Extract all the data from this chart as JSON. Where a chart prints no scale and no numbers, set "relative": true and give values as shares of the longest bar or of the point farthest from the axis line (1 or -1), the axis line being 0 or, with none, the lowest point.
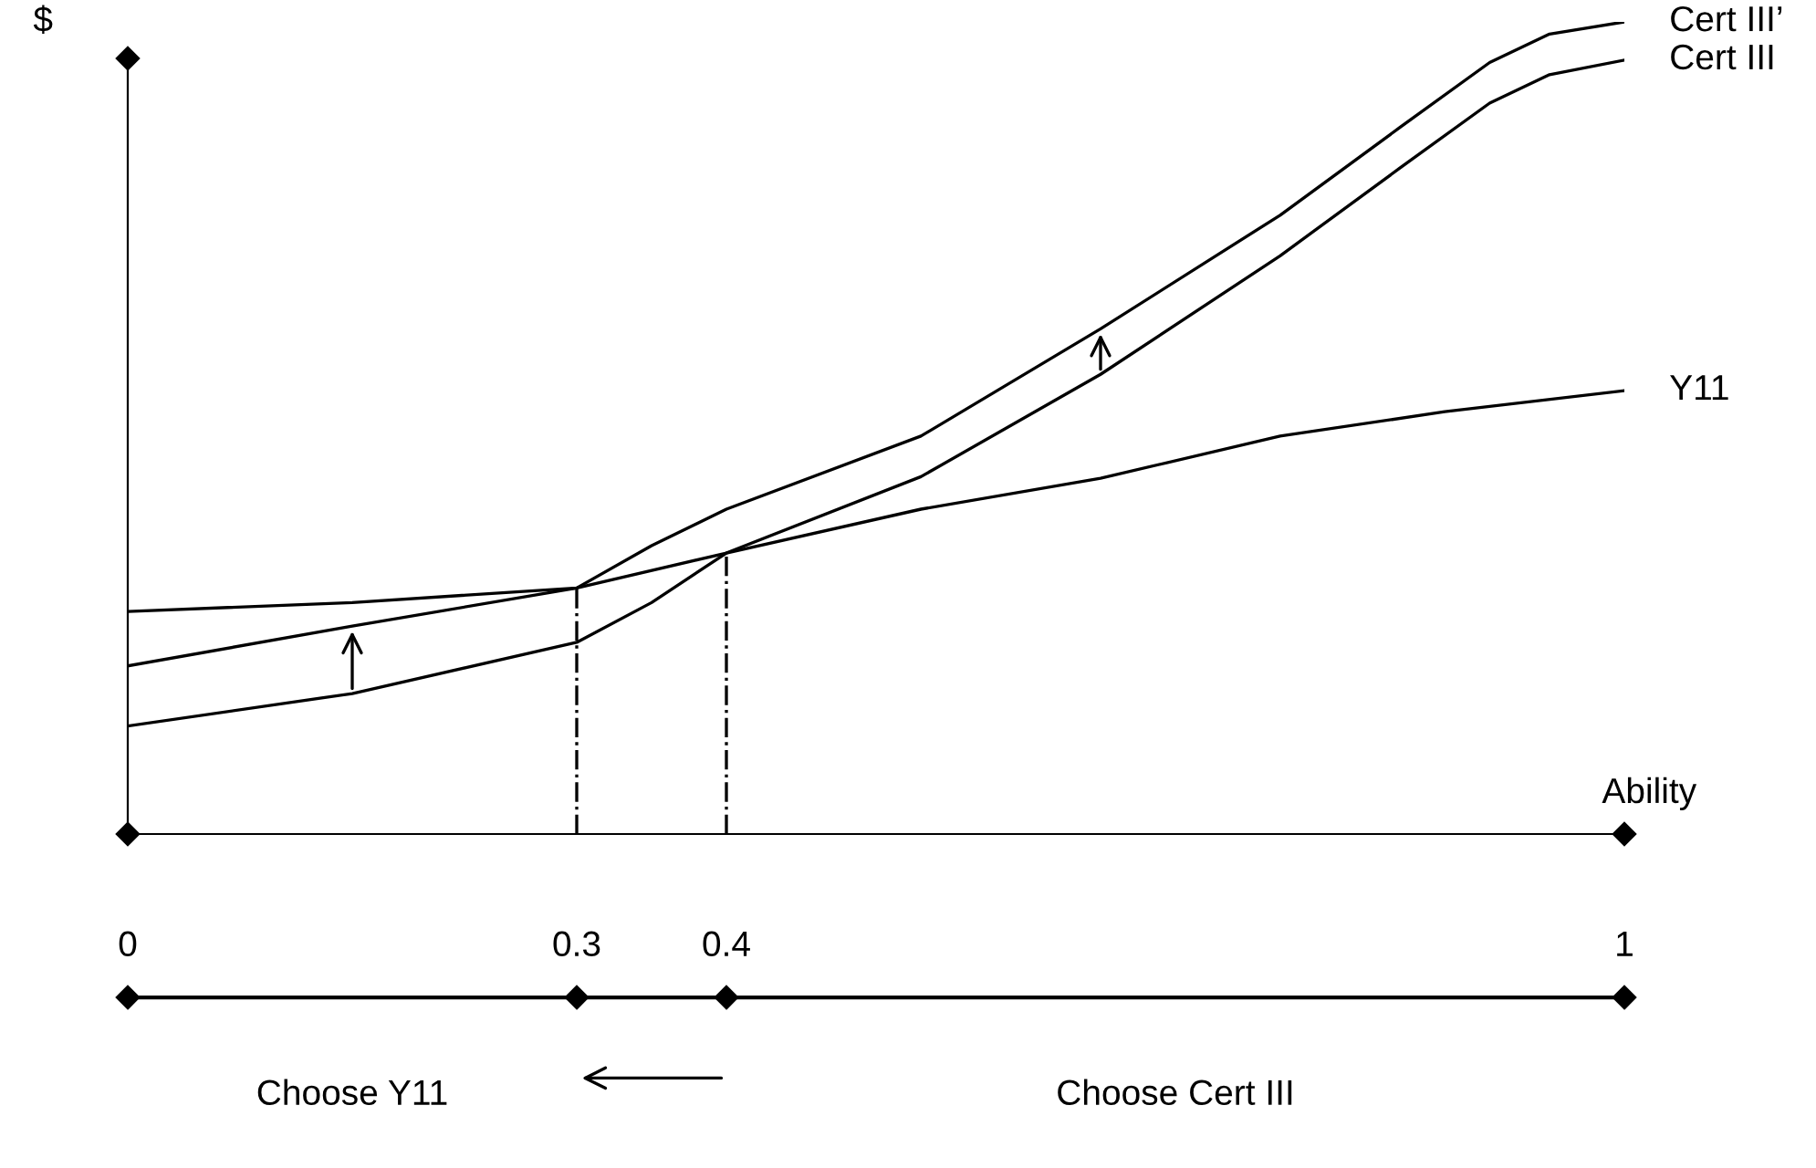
{
  "chart_data": {
    "type": "line",
    "relative": true,
    "ylabel": "$",
    "xlabel": "Ability",
    "xlim": [
      0,
      1
    ],
    "xticks": [
      0,
      0.3,
      0.4,
      1
    ],
    "grid": false,
    "legend": false,
    "marker": "none",
    "line_style": "solid",
    "series": [
      {
        "name": "Cert III’",
        "color": "#000000",
        "x": [
          0,
          0.15,
          0.3,
          0.35,
          0.4,
          0.53,
          0.65,
          0.77,
          0.85,
          0.91,
          0.95,
          1
        ],
        "values": [
          0.207,
          0.256,
          0.303,
          0.355,
          0.4,
          0.49,
          0.622,
          0.762,
          0.87,
          0.95,
          0.985,
          1.0
        ]
      },
      {
        "name": "Cert III",
        "color": "#000000",
        "x": [
          0,
          0.15,
          0.3,
          0.35,
          0.4,
          0.53,
          0.65,
          0.77,
          0.85,
          0.91,
          0.95,
          1
        ],
        "values": [
          0.133,
          0.173,
          0.236,
          0.285,
          0.346,
          0.44,
          0.566,
          0.712,
          0.82,
          0.9,
          0.935,
          0.953
        ]
      },
      {
        "name": "Y11",
        "color": "#000000",
        "x": [
          0,
          0.15,
          0.3,
          0.4,
          0.53,
          0.65,
          0.77,
          0.88,
          1
        ],
        "values": [
          0.274,
          0.285,
          0.303,
          0.346,
          0.4,
          0.438,
          0.49,
          0.52,
          0.546
        ]
      }
    ],
    "ref_lines": [
      {
        "axis": "x",
        "value": 0.3,
        "color": "#000000",
        "line_style": "dashdot"
      },
      {
        "axis": "x",
        "value": 0.4,
        "color": "#000000",
        "line_style": "dashdot"
      }
    ],
    "annotations": [
      "Choose Y11",
      "Choose Cert III"
    ]
  }
}
